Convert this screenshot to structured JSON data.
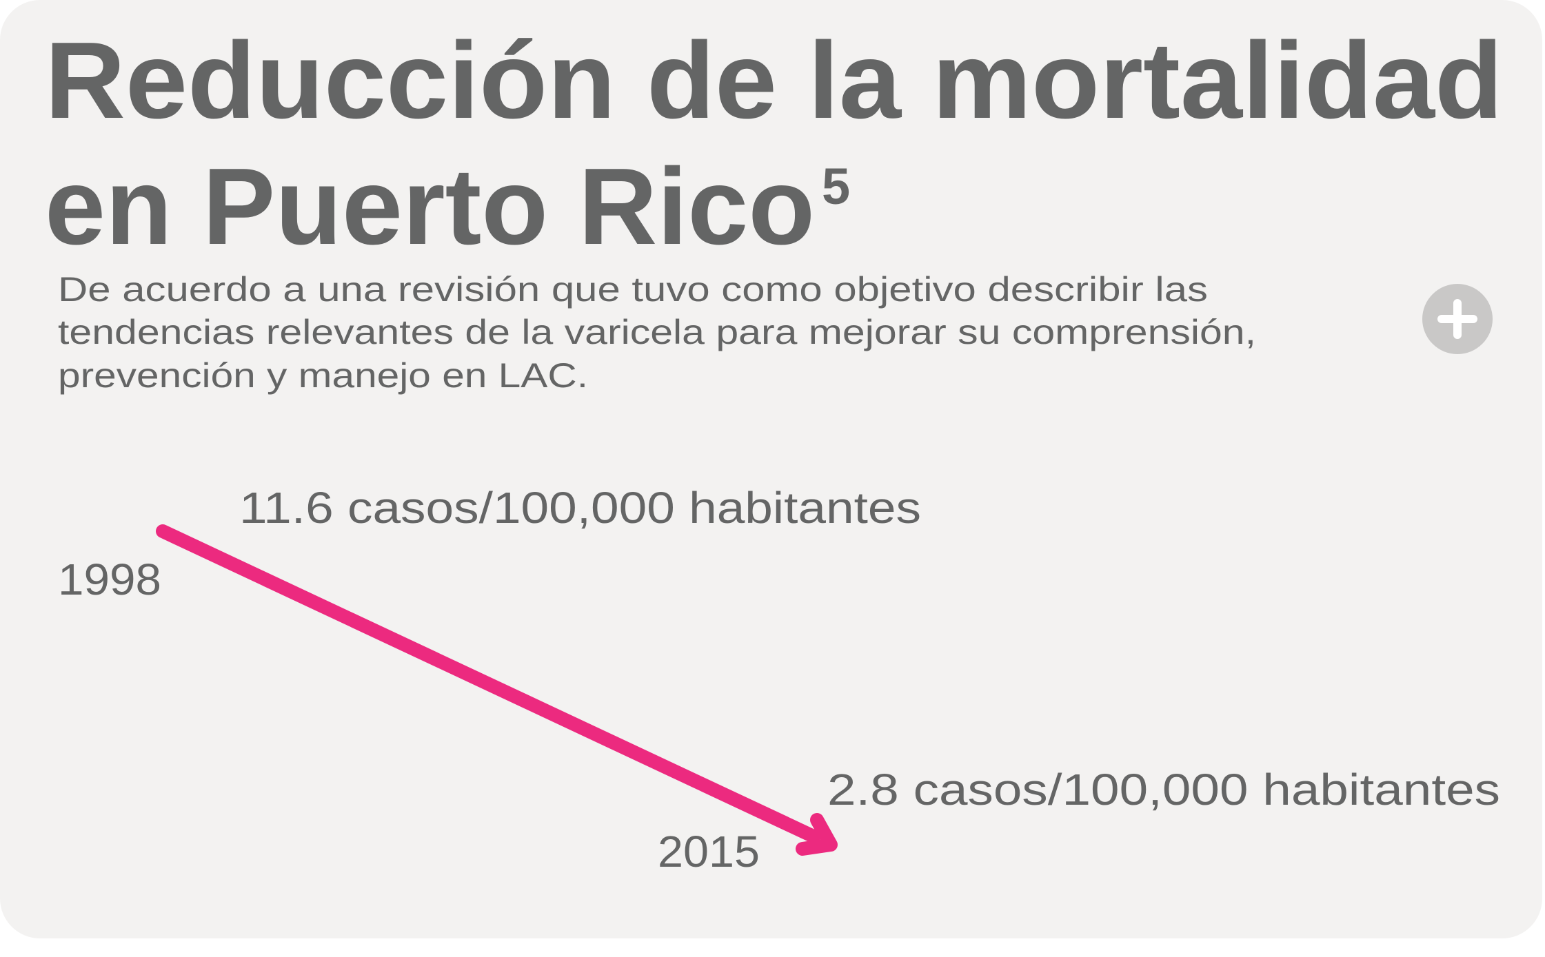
{
  "header": {
    "title_lines": [
      "Reducción de la mortalidad",
      "en Puerto Rico"
    ],
    "superscript": "5",
    "description_lines": [
      "De acuerdo a una revisión que tuvo como objetivo describir las",
      "tendencias relevantes de la varicela para mejorar su comprensión,",
      "prevención y manejo en LAC."
    ]
  },
  "points": [
    {
      "year": "1998",
      "label": "11.6 casos/100,000 habitantes"
    },
    {
      "year": "2015",
      "label": "2.8 casos/100,000 habitantes"
    }
  ]
}
